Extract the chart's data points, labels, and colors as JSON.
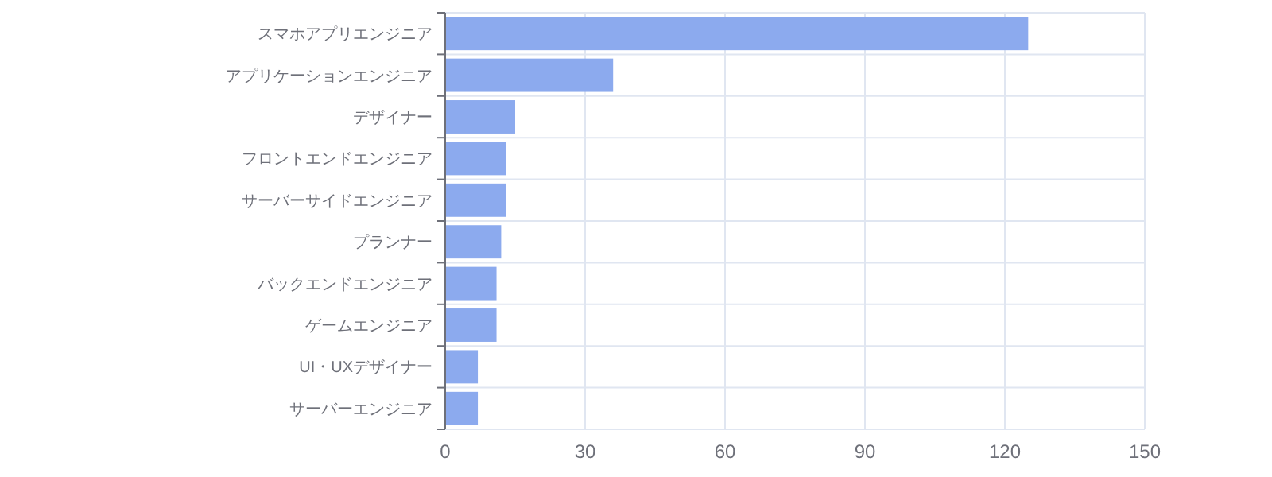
{
  "chart_data": {
    "type": "bar",
    "orientation": "horizontal",
    "categories": [
      "スマホアプリエンジニア",
      "アプリケーションエンジニア",
      "デザイナー",
      "フロントエンドエンジニア",
      "サーバーサイドエンジニア",
      "プランナー",
      "バックエンドエンジニア",
      "ゲームエンジニア",
      "UI・UXデザイナー",
      "サーバーエンジニア"
    ],
    "values": [
      125,
      36,
      15,
      13,
      13,
      12,
      11,
      11,
      7,
      7
    ],
    "color": "#8caaee",
    "xlim": [
      0,
      150
    ],
    "xticks": [
      0,
      30,
      60,
      90,
      120,
      150
    ],
    "grid": true
  }
}
